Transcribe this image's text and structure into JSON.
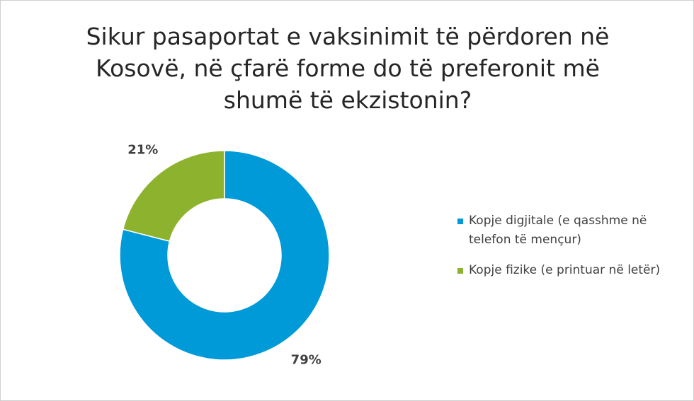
{
  "chart_data": {
    "type": "donut",
    "title": "Sikur pasaportat e vaksinimit të përdoren në Kosovë, në çfarë forme do të preferonit më shumë të ekzistonin?",
    "series": [
      {
        "name": "Kopje digjitale (e qasshme në telefon të mençur)",
        "color": "#009ad8",
        "values": [
          79
        ],
        "value_labels": [
          "79%"
        ]
      },
      {
        "name": "Kopje fizike (e printuar në letër)",
        "color": "#8db32e",
        "values": [
          21
        ],
        "value_labels": [
          "21%"
        ]
      }
    ],
    "legend": "right"
  }
}
